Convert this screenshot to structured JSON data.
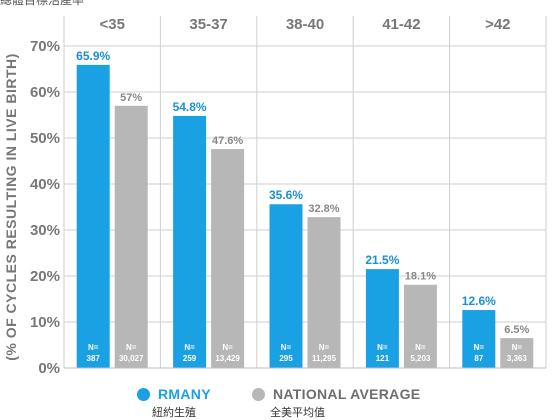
{
  "top_caption": "總體目標活產率",
  "chart_data": {
    "type": "bar",
    "ylabel": "(% OF CYCLES RESULTING IN LIVE BIRTH)",
    "ylim": [
      0,
      70
    ],
    "yticks": [
      "0%",
      "10%",
      "20%",
      "30%",
      "40%",
      "50%",
      "60%",
      "70%"
    ],
    "categories": [
      "<35",
      "35-37",
      "38-40",
      "41-42",
      ">42"
    ],
    "series": [
      {
        "name": "RMANY",
        "sublabel": "紐約生殖",
        "color": "#1aa1e4",
        "values": [
          65.9,
          54.8,
          35.6,
          21.5,
          12.6
        ],
        "labels": [
          "65.9%",
          "54.8%",
          "35.6%",
          "21.5%",
          "12.6%"
        ],
        "n": [
          "387",
          "259",
          "295",
          "121",
          "87"
        ]
      },
      {
        "name": "NATIONAL AVERAGE",
        "sublabel": "全美平均值",
        "color": "#b7b7b7",
        "values": [
          57,
          47.6,
          32.8,
          18.1,
          6.5
        ],
        "labels": [
          "57%",
          "47.6%",
          "32.8%",
          "18.1%",
          "6.5%"
        ],
        "n": [
          "30,027",
          "13,429",
          "11,295",
          "5,203",
          "3,363"
        ]
      }
    ],
    "n_prefix": "N=",
    "grid": true,
    "legend_position": "bottom"
  }
}
